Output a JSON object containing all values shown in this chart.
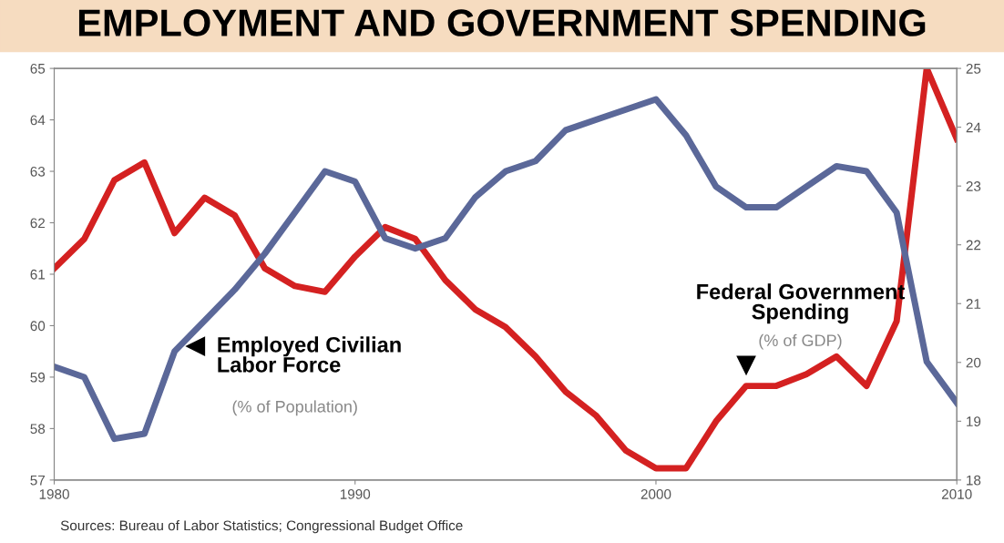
{
  "chart_data": {
    "type": "line",
    "title": "EMPLOYMENT AND GOVERNMENT SPENDING",
    "x": [
      1980,
      1981,
      1982,
      1983,
      1984,
      1985,
      1986,
      1987,
      1988,
      1989,
      1990,
      1991,
      1992,
      1993,
      1994,
      1995,
      1996,
      1997,
      1998,
      1999,
      2000,
      2001,
      2002,
      2003,
      2004,
      2005,
      2006,
      2007,
      2008,
      2009,
      2010
    ],
    "series": [
      {
        "name": "Employed Civilian Labor Force",
        "color": "#5b6899",
        "values": [
          59.2,
          59.0,
          57.8,
          57.9,
          59.5,
          60.1,
          60.7,
          61.4,
          62.2,
          63.0,
          62.8,
          61.7,
          61.5,
          61.7,
          62.5,
          63.0,
          63.2,
          63.8,
          64.0,
          64.2,
          64.4,
          63.7,
          62.7,
          62.3,
          62.3,
          62.7,
          63.1,
          63.0,
          62.2,
          59.3,
          58.5
        ]
      },
      {
        "name": "Federal Government Spending",
        "color": "#d42121",
        "axis": "y2",
        "values": [
          21.6,
          22.1,
          23.1,
          23.4,
          22.2,
          22.8,
          22.5,
          21.6,
          21.3,
          21.2,
          21.8,
          22.3,
          22.1,
          21.4,
          20.9,
          20.6,
          20.1,
          19.5,
          19.1,
          18.5,
          18.2,
          18.2,
          19.0,
          19.6,
          19.6,
          19.8,
          20.1,
          19.6,
          20.7,
          25.0,
          23.8
        ]
      }
    ],
    "xlim": [
      1980,
      2010
    ],
    "xticks": [
      1980,
      1990,
      2000,
      2010
    ],
    "ylim": [
      57,
      65
    ],
    "yticks": [
      57,
      58,
      59,
      60,
      61,
      62,
      63,
      64,
      65
    ],
    "y2lim": [
      18,
      25
    ],
    "y2ticks": [
      18,
      19,
      20,
      21,
      22,
      23,
      24,
      25
    ],
    "annotations": [
      "(% of Population)",
      "(% of GDP)",
      "Sources: Bureau of Labor Statistics; Congressional Budget Office"
    ],
    "grid": false,
    "legend": false,
    "line_style": "solid",
    "marker": "none"
  }
}
